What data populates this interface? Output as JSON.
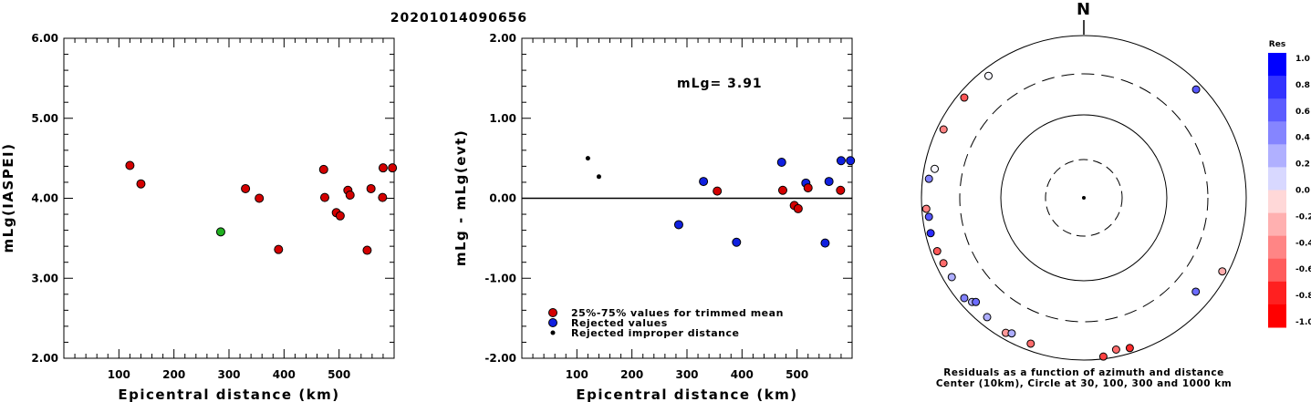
{
  "title": "20201014090656",
  "chart_data": [
    {
      "type": "scatter",
      "xlabel": "Epicentral distance (km)",
      "ylabel": "mLg(IASPEI)",
      "xlim": [
        0,
        600
      ],
      "ylim": [
        2.0,
        6.0
      ],
      "xticks": [
        "100",
        "200",
        "300",
        "400",
        "500"
      ],
      "yticks": [
        "2.00",
        "3.00",
        "4.00",
        "5.00",
        "6.00"
      ],
      "points": [
        {
          "x": 120,
          "y": 4.41,
          "c": "red"
        },
        {
          "x": 140,
          "y": 4.18,
          "c": "red"
        },
        {
          "x": 285,
          "y": 3.58,
          "c": "green"
        },
        {
          "x": 330,
          "y": 4.12,
          "c": "red"
        },
        {
          "x": 355,
          "y": 4.0,
          "c": "red"
        },
        {
          "x": 390,
          "y": 3.36,
          "c": "red"
        },
        {
          "x": 472,
          "y": 4.36,
          "c": "red"
        },
        {
          "x": 474,
          "y": 4.01,
          "c": "red"
        },
        {
          "x": 495,
          "y": 3.82,
          "c": "red"
        },
        {
          "x": 502,
          "y": 3.78,
          "c": "red"
        },
        {
          "x": 516,
          "y": 4.1,
          "c": "red"
        },
        {
          "x": 520,
          "y": 4.04,
          "c": "red"
        },
        {
          "x": 551,
          "y": 3.35,
          "c": "red"
        },
        {
          "x": 558,
          "y": 4.12,
          "c": "red"
        },
        {
          "x": 579,
          "y": 4.01,
          "c": "red"
        },
        {
          "x": 580,
          "y": 4.38,
          "c": "red"
        },
        {
          "x": 597,
          "y": 4.38,
          "c": "red"
        }
      ]
    },
    {
      "type": "scatter",
      "xlabel": "Epicentral distance (km)",
      "ylabel": "mLg - mLg(evt)",
      "xlim": [
        0,
        600
      ],
      "ylim": [
        -2.0,
        2.0
      ],
      "xticks": [
        "100",
        "200",
        "300",
        "400",
        "500"
      ],
      "yticks": [
        "-2.00",
        "-1.00",
        "0.00",
        "1.00",
        "2.00"
      ],
      "annotation": "mLg= 3.91",
      "zero_line": true,
      "points": [
        {
          "x": 120,
          "y": 0.5,
          "c": "black"
        },
        {
          "x": 140,
          "y": 0.27,
          "c": "black"
        },
        {
          "x": 285,
          "y": -0.33,
          "c": "blue"
        },
        {
          "x": 330,
          "y": 0.21,
          "c": "blue"
        },
        {
          "x": 355,
          "y": 0.09,
          "c": "red"
        },
        {
          "x": 390,
          "y": -0.55,
          "c": "blue"
        },
        {
          "x": 472,
          "y": 0.45,
          "c": "blue"
        },
        {
          "x": 474,
          "y": 0.1,
          "c": "red"
        },
        {
          "x": 495,
          "y": -0.09,
          "c": "red"
        },
        {
          "x": 502,
          "y": -0.13,
          "c": "red"
        },
        {
          "x": 516,
          "y": 0.19,
          "c": "blue"
        },
        {
          "x": 520,
          "y": 0.13,
          "c": "red"
        },
        {
          "x": 551,
          "y": -0.56,
          "c": "blue"
        },
        {
          "x": 558,
          "y": 0.21,
          "c": "blue"
        },
        {
          "x": 579,
          "y": 0.1,
          "c": "red"
        },
        {
          "x": 580,
          "y": 0.47,
          "c": "blue"
        },
        {
          "x": 597,
          "y": 0.47,
          "c": "blue"
        }
      ],
      "legend": [
        {
          "label": "25%-75% values for trimmed mean",
          "c": "red"
        },
        {
          "label": "Rejected values",
          "c": "blue"
        },
        {
          "label": "Rejected improper distance",
          "c": "black"
        }
      ]
    },
    {
      "type": "polar-scatter",
      "north_label": "N",
      "caption": [
        "Residuals as a function of azimuth and distance",
        "Center (10km), Circle at 30, 100, 300 and 1000 km"
      ],
      "colorbar": {
        "title": "Res",
        "labels": [
          "1.0",
          "0.8",
          "0.6",
          "0.4",
          "0.2",
          "0.0",
          "-0.2",
          "-0.4",
          "-0.6",
          "-0.8",
          "-1.0"
        ],
        "colors": [
          "#0000ff",
          "#3333ff",
          "#5c5cff",
          "#8585ff",
          "#b0b0ff",
          "#d8d8ff",
          "#ffd8d8",
          "#ffb0b0",
          "#ff8585",
          "#ff5c5c",
          "#ff2020",
          "#ff0000"
        ]
      },
      "points": [
        {
          "az": 322,
          "dist": 790,
          "res": 0.0
        },
        {
          "az": 310,
          "dist": 820,
          "res": -0.6
        },
        {
          "az": 296,
          "dist": 820,
          "res": -0.4
        },
        {
          "az": 281,
          "dist": 720,
          "res": 0.0
        },
        {
          "az": 277,
          "dist": 820,
          "res": 0.4
        },
        {
          "az": 266,
          "dist": 870,
          "res": -0.4
        },
        {
          "az": 263,
          "dist": 820,
          "res": 0.6
        },
        {
          "az": 257,
          "dist": 850,
          "res": 0.8
        },
        {
          "az": 250,
          "dist": 820,
          "res": -0.6
        },
        {
          "az": 245,
          "dist": 790,
          "res": -0.5
        },
        {
          "az": 239,
          "dist": 770,
          "res": 0.2
        },
        {
          "az": 230,
          "dist": 820,
          "res": 0.4
        },
        {
          "az": 227,
          "dist": 740,
          "res": 0.2
        },
        {
          "az": 219,
          "dist": 760,
          "res": 0.2
        },
        {
          "az": 226,
          "dist": 680,
          "res": 0.5
        },
        {
          "az": 210,
          "dist": 820,
          "res": -0.3
        },
        {
          "az": 208,
          "dist": 760,
          "res": 0.2
        },
        {
          "az": 200,
          "dist": 800,
          "res": -0.5
        },
        {
          "az": 168,
          "dist": 800,
          "res": -0.5
        },
        {
          "az": 163,
          "dist": 850,
          "res": -0.8
        },
        {
          "az": 173,
          "dist": 930,
          "res": -0.7
        },
        {
          "az": 130,
          "dist": 600,
          "res": 0.5
        },
        {
          "az": 118,
          "dist": 840,
          "res": -0.2
        },
        {
          "az": 46,
          "dist": 820,
          "res": 0.6
        }
      ]
    }
  ]
}
